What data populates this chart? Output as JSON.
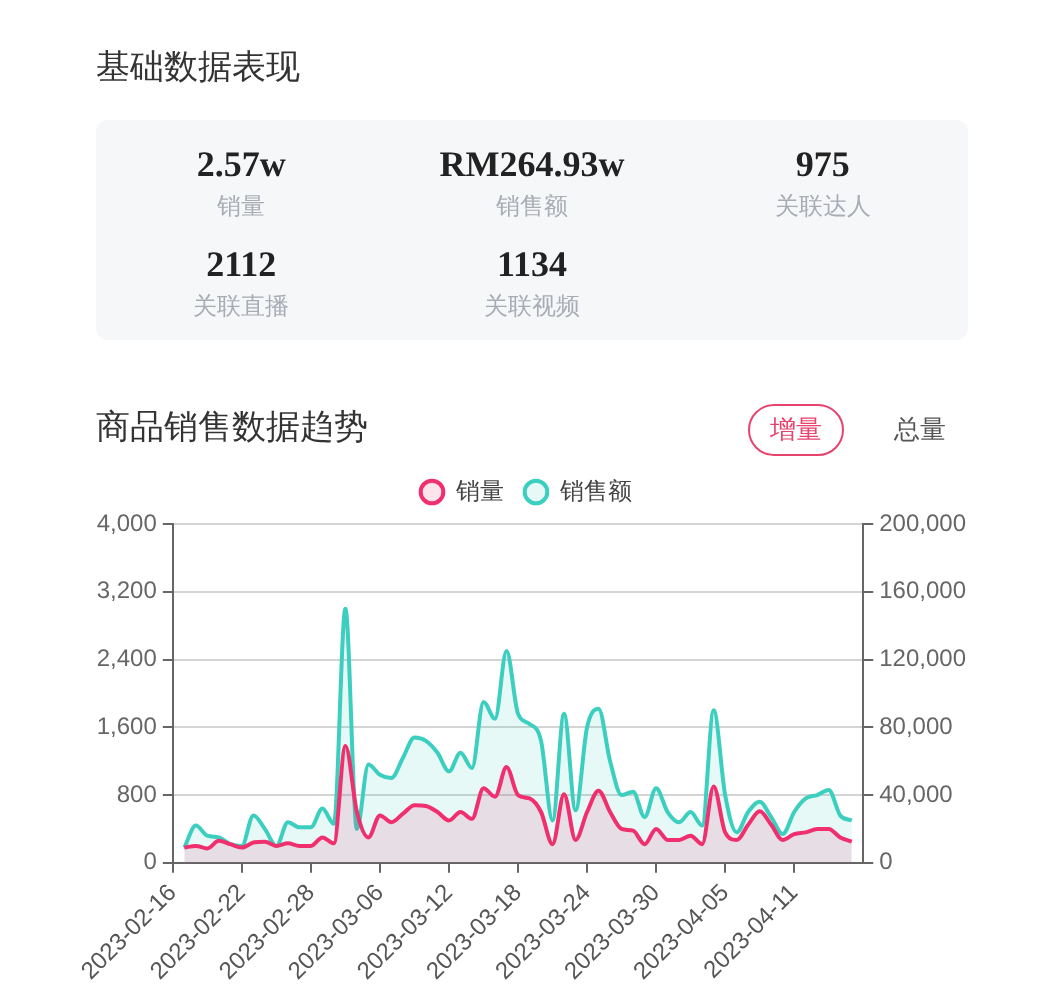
{
  "chart_data": [
    {
      "type": "other",
      "title": "基础数据表现",
      "annotations": [
        "2.57w",
        "销量",
        "RM264.93w",
        "销售额",
        "975",
        "关联达人",
        "2112",
        "关联直播",
        "1134",
        "关联视频"
      ]
    },
    {
      "type": "area",
      "title": "商品销售数据趋势",
      "annotations": [
        "增量",
        "总量"
      ],
      "x": [
        "2023-02-17",
        "2023-02-18",
        "2023-02-19",
        "2023-02-20",
        "2023-02-21",
        "2023-02-22",
        "2023-02-23",
        "2023-02-24",
        "2023-02-25",
        "2023-02-26",
        "2023-02-27",
        "2023-02-28",
        "2023-03-01",
        "2023-03-02",
        "2023-03-03",
        "2023-03-04",
        "2023-03-05",
        "2023-03-06",
        "2023-03-07",
        "2023-03-08",
        "2023-03-09",
        "2023-03-10",
        "2023-03-11",
        "2023-03-12",
        "2023-03-13",
        "2023-03-14",
        "2023-03-15",
        "2023-03-16",
        "2023-03-17",
        "2023-03-18",
        "2023-03-19",
        "2023-03-20",
        "2023-03-21",
        "2023-03-22",
        "2023-03-23",
        "2023-03-24",
        "2023-03-25",
        "2023-03-26",
        "2023-03-27",
        "2023-03-28",
        "2023-03-29",
        "2023-03-30",
        "2023-03-31",
        "2023-04-01",
        "2023-04-02",
        "2023-04-03",
        "2023-04-04",
        "2023-04-05",
        "2023-04-06",
        "2023-04-07",
        "2023-04-08",
        "2023-04-09",
        "2023-04-10",
        "2023-04-11",
        "2023-04-12",
        "2023-04-13",
        "2023-04-14",
        "2023-04-15",
        "2023-04-16"
      ],
      "series": [
        {
          "name": "销量",
          "color": "#f0306e",
          "values": [
            180,
            200,
            170,
            260,
            220,
            180,
            240,
            250,
            200,
            230,
            200,
            200,
            300,
            230,
            1380,
            600,
            300,
            560,
            480,
            580,
            680,
            670,
            600,
            500,
            600,
            520,
            880,
            780,
            1130,
            800,
            760,
            600,
            220,
            810,
            270,
            600,
            850,
            600,
            400,
            380,
            220,
            400,
            270,
            270,
            320,
            220,
            900,
            360,
            270,
            450,
            610,
            450,
            270,
            340,
            360,
            400,
            400,
            300,
            250
          ]
        },
        {
          "name": "销售额",
          "color": "#3ccfbf",
          "axis": "y2",
          "values": [
            9000,
            22000,
            16000,
            15000,
            11000,
            10000,
            28000,
            20000,
            10000,
            24000,
            21000,
            21000,
            32000,
            23000,
            150000,
            20000,
            58000,
            52000,
            50000,
            62000,
            74000,
            72000,
            65000,
            54000,
            65000,
            56000,
            95000,
            85000,
            125000,
            88000,
            82000,
            72000,
            25000,
            88000,
            31000,
            80000,
            91000,
            60000,
            40000,
            42000,
            27000,
            44000,
            30000,
            24000,
            30000,
            22000,
            90000,
            40000,
            18000,
            30000,
            36000,
            27000,
            17000,
            30000,
            38000,
            40000,
            43000,
            28000,
            25000
          ]
        }
      ],
      "xlim": [
        "2023-02-16",
        "2023-04-17"
      ],
      "xticks": [
        "2023-02-16",
        "2023-02-22",
        "2023-02-28",
        "2023-03-06",
        "2023-03-12",
        "2023-03-18",
        "2023-03-24",
        "2023-03-30",
        "2023-04-05",
        "2023-04-11"
      ],
      "ylim": [
        0,
        4000
      ],
      "yticks": [
        0,
        800,
        {
          "value": 1600,
          "label": "1,600"
        },
        {
          "value": 2400,
          "label": "2,400"
        },
        {
          "value": 3200,
          "label": "3,200"
        },
        {
          "value": 4000,
          "label": "4,000"
        }
      ],
      "y2lim": [
        0,
        200000
      ],
      "y2ticks": [
        0,
        {
          "value": 40000,
          "label": "40,000"
        },
        {
          "value": 80000,
          "label": "80,000"
        },
        {
          "value": 120000,
          "label": "120,000"
        },
        {
          "value": 160000,
          "label": "160,000"
        },
        {
          "value": 200000,
          "label": "200,000"
        }
      ],
      "grid": "y",
      "legend": "top",
      "marker": "none"
    }
  ]
}
